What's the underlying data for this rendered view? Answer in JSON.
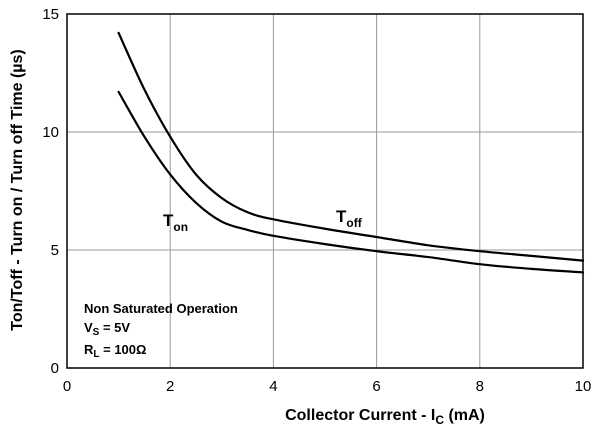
{
  "chart_data": {
    "type": "line",
    "xlabel": {
      "main": "Collector Current - I",
      "sub": "C",
      "unit": " (mA)"
    },
    "ylabel": "Ton/Toff - Turn on / Turn off Time  (µs)",
    "xlim": [
      0,
      10
    ],
    "ylim": [
      0,
      15
    ],
    "xticks": [
      "0",
      "2",
      "4",
      "6",
      "8",
      "10"
    ],
    "yticks": [
      "0",
      "5",
      "10",
      "15"
    ],
    "grid": true,
    "series": [
      {
        "name": "T_off",
        "label_main": "T",
        "label_sub": "off",
        "x": [
          1.0,
          1.5,
          2.0,
          2.5,
          3.0,
          3.5,
          4.0,
          5.0,
          6.0,
          7.0,
          8.0,
          9.0,
          10.0
        ],
        "y": [
          14.2,
          11.8,
          9.8,
          8.2,
          7.2,
          6.6,
          6.3,
          5.9,
          5.55,
          5.2,
          4.95,
          4.75,
          4.55
        ]
      },
      {
        "name": "T_on",
        "label_main": "T",
        "label_sub": "on",
        "x": [
          1.0,
          1.5,
          2.0,
          2.5,
          3.0,
          3.5,
          4.0,
          5.0,
          6.0,
          7.0,
          8.0,
          9.0,
          10.0
        ],
        "y": [
          11.7,
          9.8,
          8.2,
          7.0,
          6.2,
          5.85,
          5.6,
          5.25,
          4.95,
          4.7,
          4.4,
          4.2,
          4.05
        ]
      }
    ],
    "conditions": {
      "line1": "Non Saturated Operation",
      "line2": {
        "main": "V",
        "sub": "S",
        "rest": " = 5V"
      },
      "line3": {
        "main": "R",
        "sub": "L",
        "rest": " = 100Ω"
      }
    }
  }
}
